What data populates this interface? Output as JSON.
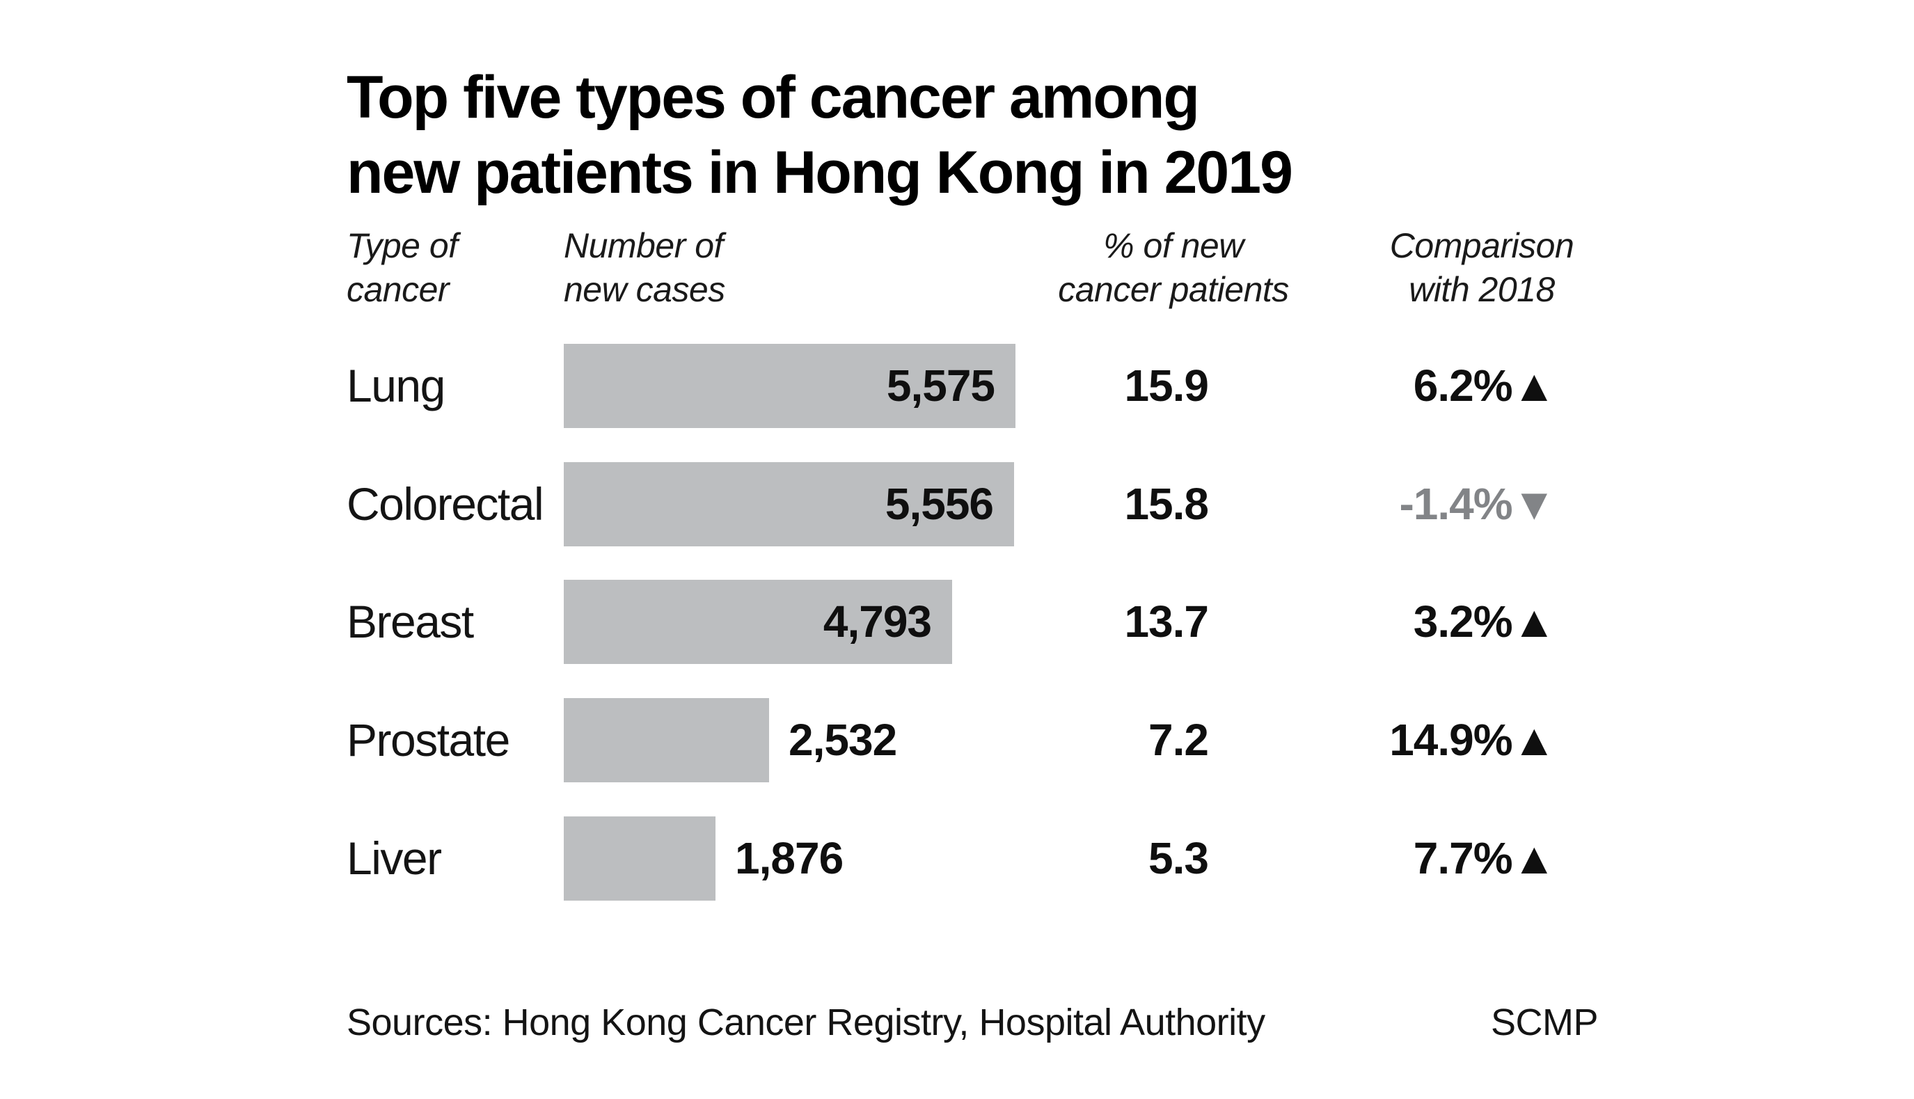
{
  "title": "Top five types of cancer among\nnew patients in Hong Kong in 2019",
  "columns": {
    "type": "Type of\ncancer",
    "cases": "Number of\nnew cases",
    "pct": "% of new\ncancer patients",
    "comparison": "Comparison\nwith 2018"
  },
  "rows": [
    {
      "label": "Lung",
      "cases": "5,575",
      "cases_value": 5575,
      "pct": "15.9",
      "comparison": "6.2%",
      "direction": "up",
      "icon": "▲",
      "value_inside": true
    },
    {
      "label": "Colorectal",
      "cases": "5,556",
      "cases_value": 5556,
      "pct": "15.8",
      "comparison": "-1.4%",
      "direction": "down",
      "icon": "▼",
      "value_inside": true
    },
    {
      "label": "Breast",
      "cases": "4,793",
      "cases_value": 4793,
      "pct": "13.7",
      "comparison": "3.2%",
      "direction": "up",
      "icon": "▲",
      "value_inside": true
    },
    {
      "label": "Prostate",
      "cases": "2,532",
      "cases_value": 2532,
      "pct": "7.2",
      "comparison": "14.9%",
      "direction": "up",
      "icon": "▲",
      "value_inside": false
    },
    {
      "label": "Liver",
      "cases": "1,876",
      "cases_value": 1876,
      "pct": "5.3",
      "comparison": "7.7%",
      "direction": "up",
      "icon": "▲",
      "value_inside": false
    }
  ],
  "footer": {
    "sources": "Sources: Hong Kong Cancer Registry, Hospital Authority",
    "credit": "SCMP"
  },
  "colors": {
    "bar": "#bcbec0",
    "up": "#0f0f0f",
    "down": "#828487",
    "text": "#141414",
    "title": "#000000",
    "background": "#ffffff"
  },
  "icons": {
    "up": "▲",
    "down": "▼"
  },
  "chart_data": {
    "type": "bar",
    "orientation": "horizontal",
    "title": "Top five types of cancer among new patients in Hong Kong in 2019",
    "categories": [
      "Lung",
      "Colorectal",
      "Breast",
      "Prostate",
      "Liver"
    ],
    "series": [
      {
        "name": "Number of new cases",
        "values": [
          5575,
          5556,
          4793,
          2532,
          1876
        ]
      },
      {
        "name": "% of new cancer patients",
        "values": [
          15.9,
          15.8,
          13.7,
          7.2,
          5.3
        ]
      },
      {
        "name": "Comparison with 2018 (%)",
        "values": [
          6.2,
          -1.4,
          3.2,
          14.9,
          7.7
        ]
      }
    ],
    "xlabel": "Number of new cases",
    "ylabel": "Type of cancer",
    "xlim": [
      0,
      5575
    ],
    "grid": false,
    "legend_position": "none",
    "bar_color": "#bcbec0",
    "sources": "Hong Kong Cancer Registry, Hospital Authority",
    "credit": "SCMP"
  }
}
